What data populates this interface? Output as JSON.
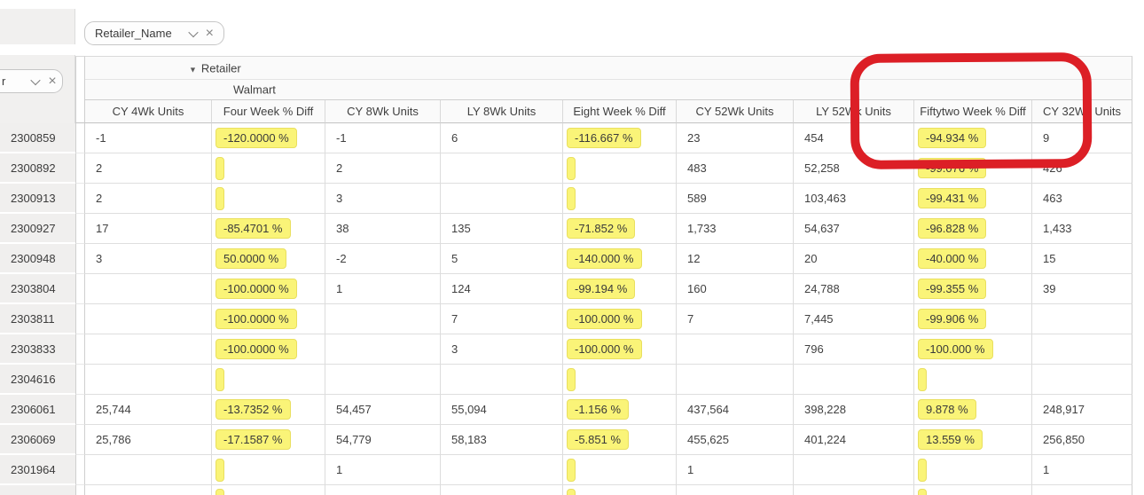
{
  "filter_chips": {
    "column_field": "Retailer_Name",
    "row_field_visible_text": "r"
  },
  "pivot": {
    "group_header": {
      "icon": "▼",
      "label": "Retailer"
    },
    "group_value": "Walmart",
    "column_headers": [
      "CY 4Wk Units",
      "Four Week % Diff",
      "CY 8Wk Units",
      "LY 8Wk Units",
      "Eight Week % Diff",
      "CY 52Wk Units",
      "LY 52Wk Units",
      "Fiftytwo Week % Diff",
      "CY 32Wk Units"
    ],
    "rows": [
      {
        "label": "2300859",
        "cells": [
          {
            "v": "-1"
          },
          {
            "v": "-120.0000 %",
            "hl": true
          },
          {
            "v": "-1"
          },
          {
            "v": "6"
          },
          {
            "v": "-116.667 %",
            "hl": true
          },
          {
            "v": "23"
          },
          {
            "v": "454"
          },
          {
            "v": "-94.934 %",
            "hl": true
          },
          {
            "v": "9"
          }
        ]
      },
      {
        "label": "2300892",
        "cells": [
          {
            "v": "2"
          },
          {
            "sliver": true
          },
          {
            "v": "2"
          },
          null,
          {
            "sliver": true
          },
          {
            "v": "483"
          },
          {
            "v": "52,258"
          },
          {
            "v": "-99.076 %",
            "hl": true
          },
          {
            "v": "426"
          }
        ]
      },
      {
        "label": "2300913",
        "cells": [
          {
            "v": "2"
          },
          {
            "sliver": true
          },
          {
            "v": "3"
          },
          null,
          {
            "sliver": true
          },
          {
            "v": "589"
          },
          {
            "v": "103,463"
          },
          {
            "v": "-99.431 %",
            "hl": true
          },
          {
            "v": "463"
          }
        ]
      },
      {
        "label": "2300927",
        "cells": [
          {
            "v": "17"
          },
          {
            "v": "-85.4701 %",
            "hl": true
          },
          {
            "v": "38"
          },
          {
            "v": "135"
          },
          {
            "v": "-71.852 %",
            "hl": true
          },
          {
            "v": "1,733"
          },
          {
            "v": "54,637"
          },
          {
            "v": "-96.828 %",
            "hl": true
          },
          {
            "v": "1,433"
          }
        ]
      },
      {
        "label": "2300948",
        "cells": [
          {
            "v": "3"
          },
          {
            "v": "50.0000 %",
            "hl": true
          },
          {
            "v": "-2"
          },
          {
            "v": "5"
          },
          {
            "v": "-140.000 %",
            "hl": true
          },
          {
            "v": "12"
          },
          {
            "v": "20"
          },
          {
            "v": "-40.000 %",
            "hl": true
          },
          {
            "v": "15"
          }
        ]
      },
      {
        "label": "2303804",
        "cells": [
          null,
          {
            "v": "-100.0000 %",
            "hl": true
          },
          {
            "v": "1"
          },
          {
            "v": "124"
          },
          {
            "v": "-99.194 %",
            "hl": true
          },
          {
            "v": "160"
          },
          {
            "v": "24,788"
          },
          {
            "v": "-99.355 %",
            "hl": true
          },
          {
            "v": "39"
          }
        ]
      },
      {
        "label": "2303811",
        "cells": [
          null,
          {
            "v": "-100.0000 %",
            "hl": true
          },
          null,
          {
            "v": "7"
          },
          {
            "v": "-100.000 %",
            "hl": true
          },
          {
            "v": "7"
          },
          {
            "v": "7,445"
          },
          {
            "v": "-99.906 %",
            "hl": true
          },
          null
        ]
      },
      {
        "label": "2303833",
        "cells": [
          null,
          {
            "v": "-100.0000 %",
            "hl": true
          },
          null,
          {
            "v": "3"
          },
          {
            "v": "-100.000 %",
            "hl": true
          },
          null,
          {
            "v": "796"
          },
          {
            "v": "-100.000 %",
            "hl": true
          },
          null
        ]
      },
      {
        "label": "2304616",
        "cells": [
          null,
          {
            "sliver": true
          },
          null,
          null,
          {
            "sliver": true
          },
          null,
          null,
          {
            "sliver": true
          },
          null
        ]
      },
      {
        "label": "2306061",
        "cells": [
          {
            "v": "25,744"
          },
          {
            "v": "-13.7352 %",
            "hl": true
          },
          {
            "v": "54,457"
          },
          {
            "v": "55,094"
          },
          {
            "v": "-1.156 %",
            "hl": true
          },
          {
            "v": "437,564"
          },
          {
            "v": "398,228"
          },
          {
            "v": "9.878 %",
            "hl": true
          },
          {
            "v": "248,917"
          }
        ]
      },
      {
        "label": "2306069",
        "cells": [
          {
            "v": "25,786"
          },
          {
            "v": "-17.1587 %",
            "hl": true
          },
          {
            "v": "54,779"
          },
          {
            "v": "58,183"
          },
          {
            "v": "-5.851 %",
            "hl": true
          },
          {
            "v": "455,625"
          },
          {
            "v": "401,224"
          },
          {
            "v": "13.559 %",
            "hl": true
          },
          {
            "v": "256,850"
          }
        ]
      },
      {
        "label": "2301964",
        "cells": [
          null,
          {
            "sliver": true
          },
          {
            "v": "1"
          },
          null,
          {
            "sliver": true
          },
          {
            "v": "1"
          },
          null,
          {
            "sliver": true
          },
          {
            "v": "1"
          }
        ]
      }
    ],
    "partial_row": {
      "label": "",
      "cells": [
        null,
        {
          "sliver": true
        },
        null,
        null,
        {
          "sliver": true
        },
        null,
        null,
        {
          "sliver": true
        },
        null
      ]
    }
  },
  "colors": {
    "highlight": "#faf478",
    "annotation": "#dc1f26"
  },
  "annotation": {
    "style": "hand-drawn-rounded-rect"
  }
}
